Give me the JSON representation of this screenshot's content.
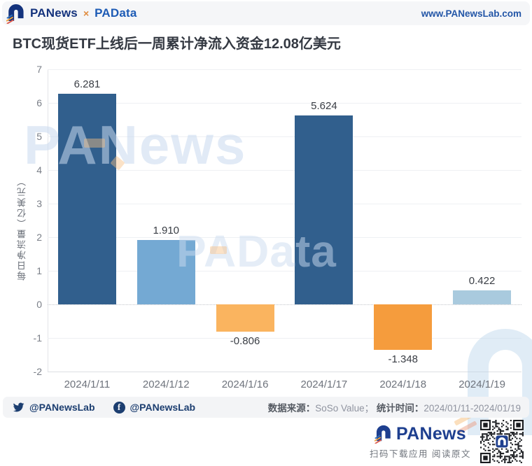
{
  "header": {
    "brand_primary": "PANews",
    "brand_separator": "×",
    "brand_secondary": "PAData",
    "website": "www.PANewsLab.com"
  },
  "title": "BTC现货ETF上线后一周累计净流入资金12.08亿美元",
  "chart_data": {
    "type": "bar",
    "title": "BTC现货ETF上线后一周累计净流入资金12.08亿美元",
    "categories": [
      "2024/1/11",
      "2024/1/12",
      "2024/1/16",
      "2024/1/17",
      "2024/1/18",
      "2024/1/19"
    ],
    "values": [
      6.281,
      1.91,
      -0.806,
      5.624,
      -1.348,
      0.422
    ],
    "value_labels": [
      "6.281",
      "1.910",
      "-0.806",
      "5.624",
      "-1.348",
      "0.422"
    ],
    "bar_colors": [
      "#315f8d",
      "#74a9d3",
      "#fab45f",
      "#315f8d",
      "#f59c3d",
      "#a9cade"
    ],
    "xlabel": "",
    "ylabel": "每日净流量（亿美元）",
    "ylim": [
      -2,
      7
    ],
    "yticks": [
      7,
      6,
      5,
      4,
      3,
      2,
      1,
      0,
      -1,
      -2
    ],
    "grid": true,
    "zero_line": "dotted",
    "legend": "none"
  },
  "watermarks": {
    "text1": "PANews",
    "text2": "PAData"
  },
  "footer": {
    "twitter_handle": "@PANewsLab",
    "facebook_handle": "@PANewsLab",
    "source_label": "数据来源：",
    "source_value": "SoSo Value；",
    "period_label": "统计时间：",
    "period_value": "2024/01/11-2024/01/19"
  },
  "branding": {
    "logo_text": "PANews",
    "tagline": "扫码下载应用 阅读原文"
  }
}
